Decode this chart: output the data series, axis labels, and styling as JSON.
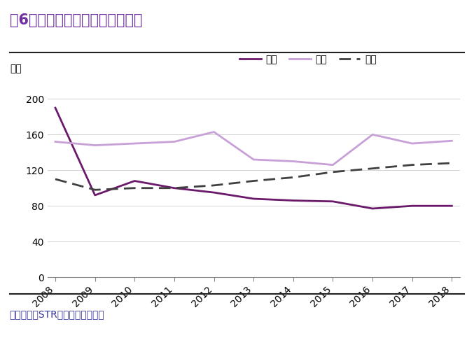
{
  "title": "图6：中国酒店平均房价持续下降",
  "ylabel": "美元",
  "source_text": "资料来源：STR，光大证券研究所",
  "years": [
    2008,
    2009,
    2010,
    2011,
    2012,
    2013,
    2014,
    2015,
    2016,
    2017,
    2018
  ],
  "china": [
    190,
    92,
    108,
    100,
    95,
    88,
    86,
    85,
    77,
    80,
    80
  ],
  "japan": [
    152,
    148,
    150,
    152,
    163,
    132,
    130,
    126,
    160,
    150,
    153
  ],
  "usa": [
    110,
    98,
    100,
    100,
    103,
    108,
    112,
    118,
    122,
    126,
    128
  ],
  "china_color": "#6b1a6b",
  "japan_color": "#c8a0d8",
  "usa_color": "#404040",
  "title_color": "#7030a0",
  "source_color": "#333399",
  "background_color": "#ffffff",
  "ylim": [
    0,
    220
  ],
  "yticks": [
    0,
    40,
    80,
    120,
    160,
    200
  ],
  "legend_labels": [
    "中国",
    "日本",
    "美国"
  ],
  "title_fontsize": 15,
  "axis_fontsize": 10,
  "legend_fontsize": 10,
  "source_fontsize": 10
}
